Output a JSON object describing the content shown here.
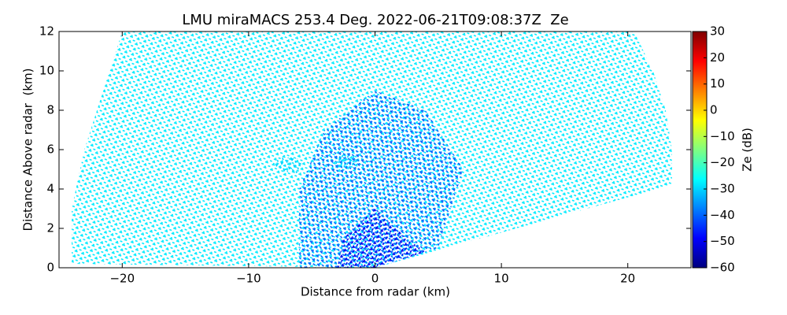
{
  "chart_data": {
    "type": "rhi",
    "title": "LMU miraMACS 253.4 Deg. 2022-06-21T09:08:37Z  Ze",
    "xlabel": "Distance from radar (km)",
    "ylabel": "Distance Above radar  (km)",
    "xlim": [
      -25,
      25
    ],
    "xticks": [
      {
        "value": -20,
        "label": "−20"
      },
      {
        "value": -10,
        "label": "−10"
      },
      0,
      10,
      20
    ],
    "ylim": [
      0,
      12
    ],
    "yticks": [
      0,
      2,
      4,
      6,
      8,
      10,
      12
    ],
    "colorbar": {
      "label": "Ze (dB)",
      "colormap": "jet",
      "lim": [
        -60,
        30
      ],
      "ticks": [
        {
          "value": -60,
          "label": "−60"
        },
        {
          "value": -50,
          "label": "−50"
        },
        {
          "value": -40,
          "label": "−40"
        },
        {
          "value": -30,
          "label": "−30"
        },
        {
          "value": -20,
          "label": "−20"
        },
        {
          "value": -10,
          "label": "−10"
        },
        0,
        10,
        20,
        30
      ]
    },
    "regions": [
      {
        "ze": -28,
        "x": [
          -24,
          -24,
          -23,
          -21.5,
          -20,
          20.5,
          22,
          23,
          23.5,
          23.5,
          0
        ],
        "y": [
          0.2,
          3,
          6,
          9,
          12,
          12,
          10,
          8,
          6,
          4.2,
          0
        ]
      },
      {
        "ze": -40,
        "x": [
          -6,
          -6,
          -4,
          0,
          4,
          7,
          5,
          0
        ],
        "y": [
          0,
          4,
          7,
          9,
          8,
          5,
          1,
          0
        ]
      },
      {
        "ze": -30,
        "x": [
          -8.2,
          -7.5,
          -6.3,
          -5.6,
          -6.2,
          -7.4
        ],
        "y": [
          5.2,
          5.6,
          5.6,
          5.3,
          4.8,
          4.9
        ]
      },
      {
        "ze": -30,
        "x": [
          -3.3,
          -2.6,
          -1.6,
          -1.2,
          -1.8,
          -2.9
        ],
        "y": [
          5.4,
          5.8,
          5.7,
          5.4,
          5.1,
          5.1
        ]
      },
      {
        "ze": -50,
        "x": [
          -3,
          -2.5,
          0,
          2.5,
          4,
          0
        ],
        "y": [
          0,
          1.5,
          3,
          1.5,
          0.8,
          0
        ]
      }
    ]
  }
}
